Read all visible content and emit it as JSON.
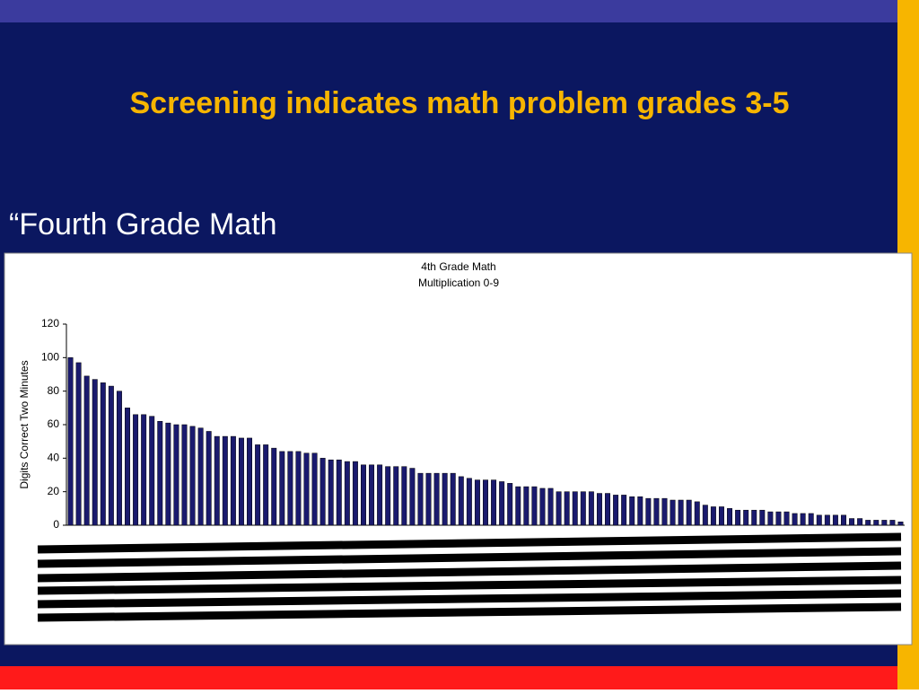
{
  "slide_title": "Screening indicates math problem grades 3-5",
  "body_text": "“Fourth Grade Math",
  "chart_data": {
    "type": "bar",
    "title": [
      "4th Grade Math",
      "Multiplication 0-9"
    ],
    "ylabel": "Digits Correct Two Minutes",
    "color": "#1a1a6e",
    "ylim": [
      0,
      120
    ],
    "yticks": [
      0,
      20,
      40,
      60,
      80,
      100,
      120
    ],
    "categories": [
      null,
      null,
      null,
      null,
      null,
      null,
      null,
      null,
      null,
      null,
      null,
      null,
      null,
      null,
      null,
      null,
      null,
      null,
      null,
      null,
      null,
      null,
      null,
      null,
      null,
      null,
      null,
      null,
      null,
      null,
      null,
      null,
      null,
      null,
      null,
      null,
      null,
      null,
      null,
      null,
      null,
      null,
      null,
      null,
      null,
      null,
      null,
      null,
      null,
      null,
      null,
      null,
      null,
      null,
      null,
      null,
      null,
      null,
      null,
      null,
      null,
      null,
      null,
      null,
      null,
      null,
      null,
      null,
      null,
      null,
      null,
      null,
      null,
      null,
      null,
      null,
      null,
      null,
      null,
      null,
      null,
      null,
      null,
      null,
      null,
      null,
      null,
      null,
      null,
      null,
      null,
      null,
      null,
      null,
      null,
      null,
      null,
      null,
      null,
      null,
      null,
      null,
      null
    ],
    "values": [
      100,
      97,
      89,
      87,
      85,
      83,
      80,
      70,
      66,
      66,
      65,
      62,
      61,
      60,
      60,
      59,
      58,
      56,
      53,
      53,
      53,
      52,
      52,
      48,
      48,
      46,
      44,
      44,
      44,
      43,
      43,
      40,
      39,
      39,
      38,
      38,
      36,
      36,
      36,
      35,
      35,
      35,
      34,
      31,
      31,
      31,
      31,
      31,
      29,
      28,
      27,
      27,
      27,
      26,
      25,
      23,
      23,
      23,
      22,
      22,
      20,
      20,
      20,
      20,
      20,
      19,
      19,
      18,
      18,
      17,
      17,
      16,
      16,
      16,
      15,
      15,
      15,
      14,
      12,
      11,
      11,
      10,
      9,
      9,
      9,
      9,
      8,
      8,
      8,
      7,
      7,
      7,
      6,
      6,
      6,
      6,
      4,
      4,
      3,
      3,
      3,
      3,
      2
    ]
  }
}
